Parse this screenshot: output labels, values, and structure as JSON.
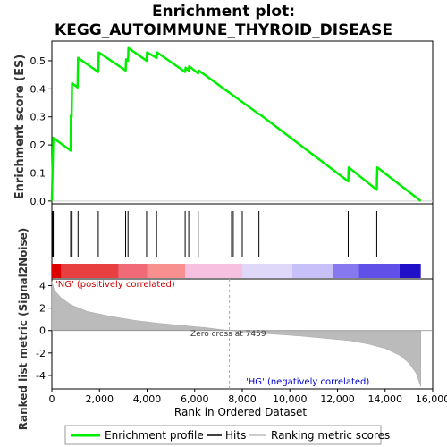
{
  "chart_data": {
    "type": "line",
    "title_line1": "Enrichment plot:",
    "title_line2": "KEGG_AUTOIMMUNE_THYROID_DISEASE",
    "es_panel": {
      "ylabel": "Enrichment score (ES)",
      "yticks": [
        "0.0",
        "0.1",
        "0.2",
        "0.3",
        "0.4",
        "0.5"
      ],
      "ylim": [
        -0.01,
        0.57
      ],
      "series_color": "#00ee00",
      "points": [
        [
          0,
          0.0
        ],
        [
          60,
          0.225
        ],
        [
          790,
          0.18
        ],
        [
          800,
          0.305
        ],
        [
          830,
          0.3
        ],
        [
          850,
          0.42
        ],
        [
          1080,
          0.405
        ],
        [
          1100,
          0.51
        ],
        [
          1950,
          0.46
        ],
        [
          1970,
          0.53
        ],
        [
          3100,
          0.465
        ],
        [
          3120,
          0.505
        ],
        [
          3200,
          0.5
        ],
        [
          3220,
          0.545
        ],
        [
          3980,
          0.5
        ],
        [
          4000,
          0.53
        ],
        [
          4400,
          0.51
        ],
        [
          4420,
          0.53
        ],
        [
          5600,
          0.46
        ],
        [
          5620,
          0.475
        ],
        [
          5750,
          0.465
        ],
        [
          5770,
          0.48
        ],
        [
          6150,
          0.455
        ],
        [
          6170,
          0.465
        ],
        [
          8700,
          0.31
        ],
        [
          8720,
          0.31
        ],
        [
          12450,
          0.07
        ],
        [
          12470,
          0.12
        ],
        [
          13650,
          0.04
        ],
        [
          13670,
          0.12
        ],
        [
          15500,
          0.0
        ]
      ]
    },
    "hits": [
      30,
      60,
      790,
      800,
      850,
      1100,
      1950,
      3100,
      3200,
      3980,
      4400,
      5600,
      5750,
      6150,
      7550,
      7620,
      8000,
      8700,
      12450,
      13650
    ],
    "xlim": [
      0,
      16000
    ],
    "xticks": [
      "0",
      "2,000",
      "4,000",
      "6,000",
      "8,000",
      "10,000",
      "12,000",
      "14,000",
      "16,000"
    ],
    "xtick_values": [
      0,
      2000,
      4000,
      6000,
      8000,
      10000,
      12000,
      14000,
      16000
    ],
    "xlabel": "Rank in Ordered Dataset",
    "n_genes": 15500,
    "zero_cross": 7459,
    "metric_panel": {
      "ylabel": "Ranked list metric (Signal2Noise)",
      "yticks": [
        "-4",
        "-2",
        "0",
        "2",
        "4"
      ],
      "ylim": [
        -5.2,
        4.6
      ],
      "points": [
        [
          0,
          4.4
        ],
        [
          100,
          3.6
        ],
        [
          400,
          2.9
        ],
        [
          800,
          2.3
        ],
        [
          1500,
          1.7
        ],
        [
          2500,
          1.25
        ],
        [
          3500,
          0.9
        ],
        [
          4500,
          0.65
        ],
        [
          5500,
          0.45
        ],
        [
          6500,
          0.25
        ],
        [
          7459,
          0.0
        ],
        [
          8500,
          -0.2
        ],
        [
          9500,
          -0.35
        ],
        [
          10500,
          -0.5
        ],
        [
          11500,
          -0.7
        ],
        [
          12500,
          -0.9
        ],
        [
          13300,
          -1.2
        ],
        [
          14000,
          -1.6
        ],
        [
          14600,
          -2.2
        ],
        [
          15000,
          -2.9
        ],
        [
          15300,
          -3.8
        ],
        [
          15500,
          -5.0
        ]
      ]
    },
    "colorbar": [
      {
        "from": 0,
        "to": 400,
        "color": "#dd0000"
      },
      {
        "from": 400,
        "to": 2800,
        "color": "#e84040"
      },
      {
        "from": 2800,
        "to": 4000,
        "color": "#f06a78"
      },
      {
        "from": 4000,
        "to": 5600,
        "color": "#f89090"
      },
      {
        "from": 5600,
        "to": 8000,
        "color": "#f8c0e0"
      },
      {
        "from": 8000,
        "to": 10100,
        "color": "#e0d8f8"
      },
      {
        "from": 10100,
        "to": 11800,
        "color": "#c8c0f8"
      },
      {
        "from": 11800,
        "to": 12900,
        "color": "#8878f0"
      },
      {
        "from": 12900,
        "to": 14600,
        "color": "#6050e8"
      },
      {
        "from": 14600,
        "to": 15500,
        "color": "#2010c8"
      }
    ],
    "annotations": {
      "positive": "'NG' (positively correlated)",
      "negative": "'HG' (negatively correlated)",
      "zero_cross": "Zero cross at 7459"
    },
    "legend": {
      "items": [
        "Enrichment profile",
        "Hits",
        "Ranking metric scores"
      ],
      "placement": "bottom"
    }
  }
}
